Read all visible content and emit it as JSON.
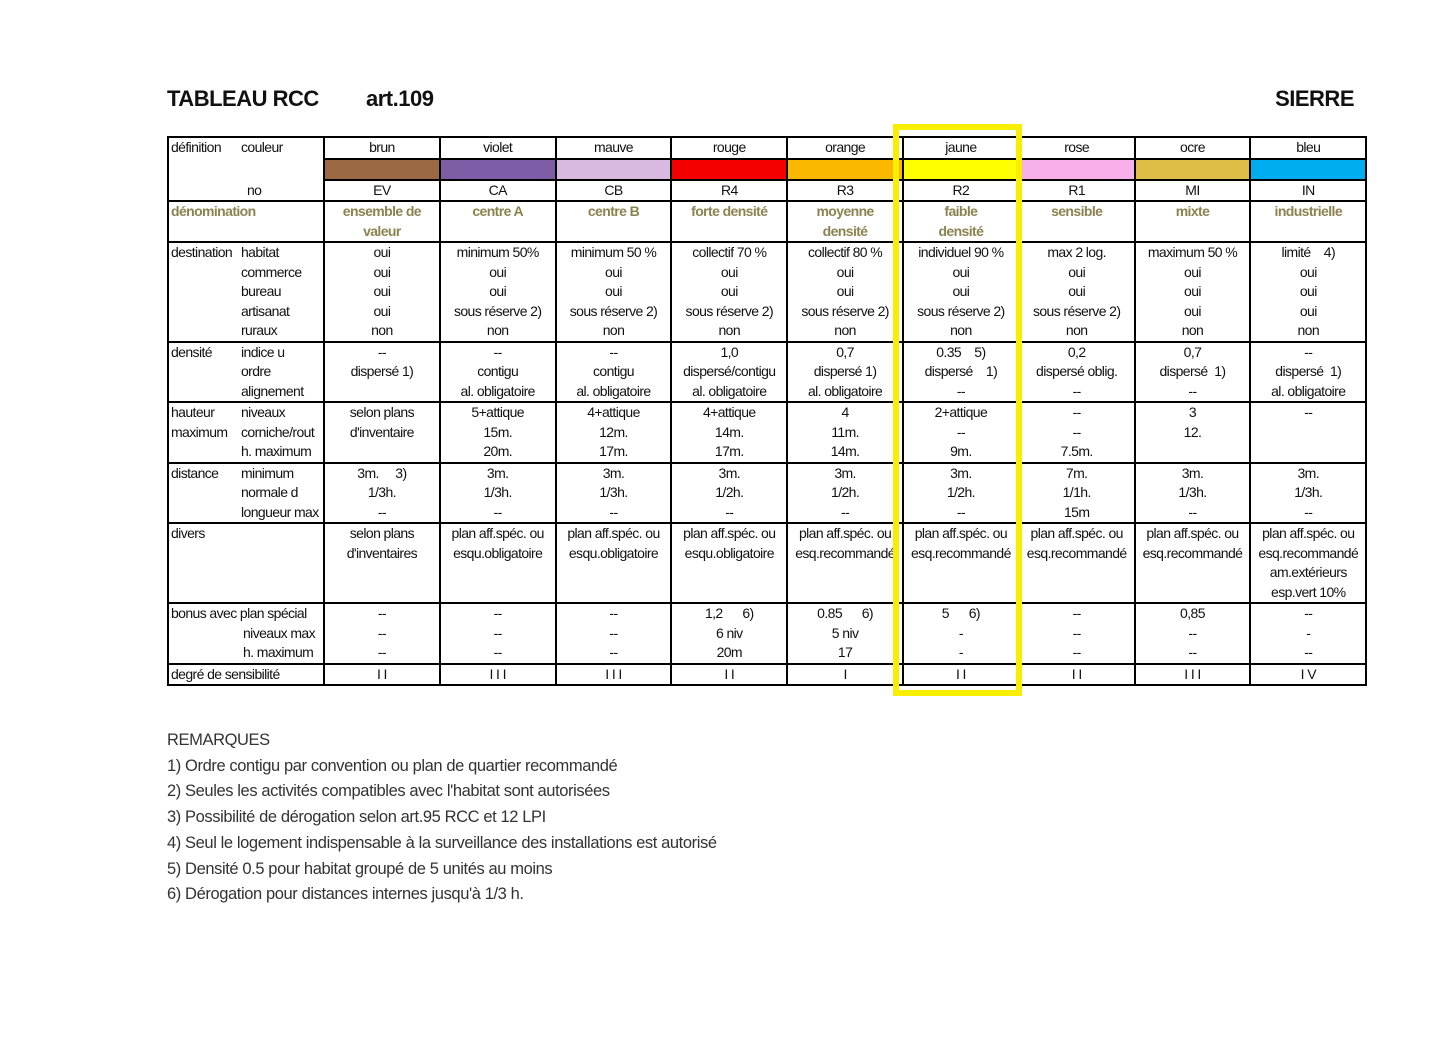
{
  "header": {
    "title": "TABLEAU RCC",
    "article": "art.109",
    "city": "SIERRE"
  },
  "row_labels": {
    "definition": "définition",
    "couleur": "couleur",
    "no": "no",
    "denomination": "dénomination",
    "destination": {
      "main": "destination",
      "subs": [
        "habitat",
        "commerce",
        "bureau",
        "artisanat",
        "ruraux"
      ]
    },
    "densite": {
      "main": "densité",
      "subs": [
        "indice u",
        "ordre",
        "alignement"
      ]
    },
    "hauteur": {
      "main": [
        "hauteur",
        "maximum"
      ],
      "subs": [
        "niveaux",
        "corniche/rout",
        "h. maximum"
      ]
    },
    "distance": {
      "main": "distance",
      "subs": [
        "minimum",
        "normale d",
        "longueur max"
      ]
    },
    "divers": "divers",
    "bonus": {
      "main": "bonus avec plan spécial",
      "subs": [
        "niveaux max",
        "h. maximum"
      ]
    },
    "sensibilite": "degré de sensibilité"
  },
  "columns": [
    {
      "couleur": "brun",
      "color": "#9b6a45",
      "no": "EV",
      "denomination": [
        "ensemble de",
        "valeur"
      ],
      "destination": [
        "oui",
        "oui",
        "oui",
        "oui",
        "non"
      ],
      "densite": [
        "--",
        "dispersé 1)",
        ""
      ],
      "hauteur": [
        "",
        "selon plans",
        "d'inventaire"
      ],
      "distance": [
        "3m.     3)",
        "1/3h.",
        "--"
      ],
      "divers": [
        "selon plans",
        "d'inventaires"
      ],
      "bonus": [
        "--",
        "--",
        "--"
      ],
      "sensibilite": "I I"
    },
    {
      "couleur": "violet",
      "color": "#7d5ea6",
      "no": "CA",
      "denomination": [
        "centre A"
      ],
      "destination": [
        "minimum 50%",
        "oui",
        "oui",
        "sous réserve 2)",
        "non"
      ],
      "densite": [
        "--",
        "contigu",
        "al. obligatoire"
      ],
      "hauteur": [
        "5+attique",
        "15m.",
        "20m."
      ],
      "distance": [
        "3m.",
        "1/3h.",
        "--"
      ],
      "divers": [
        "plan aff.spéc. ou",
        "esqu.obligatoire"
      ],
      "bonus": [
        "--",
        "--",
        "--"
      ],
      "sensibilite": "I I I"
    },
    {
      "couleur": "mauve",
      "color": "#d9b9e0",
      "no": "CB",
      "denomination": [
        "centre B"
      ],
      "destination": [
        "minimum 50 %",
        "oui",
        "oui",
        "sous réserve 2)",
        "non"
      ],
      "densite": [
        "--",
        "contigu",
        "al. obligatoire"
      ],
      "hauteur": [
        "4+attique",
        "12m.",
        "17m."
      ],
      "distance": [
        "3m.",
        "1/3h.",
        "--"
      ],
      "divers": [
        "plan aff.spéc. ou",
        "esqu.obligatoire"
      ],
      "bonus": [
        "--",
        "--",
        "--"
      ],
      "sensibilite": "I I I"
    },
    {
      "couleur": "rouge",
      "color": "#f40000",
      "no": "R4",
      "denomination": [
        "forte densité"
      ],
      "destination": [
        "collectif 70 %",
        "oui",
        "oui",
        "sous réserve 2)",
        "non"
      ],
      "densite": [
        "1,0",
        "dispersé/contigu",
        "al. obligatoire"
      ],
      "hauteur": [
        "4+attique",
        "14m.",
        "17m."
      ],
      "distance": [
        "3m.",
        "1/2h.",
        "--"
      ],
      "divers": [
        "plan aff.spéc. ou",
        "esqu.obligatoire"
      ],
      "bonus": [
        "1,2      6)",
        "6 niv",
        "20m"
      ],
      "sensibilite": "I I"
    },
    {
      "couleur": "orange",
      "color": "#fbb800",
      "no": "R3",
      "denomination": [
        "moyenne",
        "densité"
      ],
      "destination": [
        "collectif 80 %",
        "oui",
        "oui",
        "sous réserve 2)",
        "non"
      ],
      "densite": [
        "0,7",
        "dispersé 1)",
        "al. obligatoire"
      ],
      "hauteur": [
        "4",
        "11m.",
        "14m."
      ],
      "distance": [
        "3m.",
        "1/2h.",
        "--"
      ],
      "divers": [
        "plan aff.spéc. ou",
        "esq.recommandé"
      ],
      "bonus": [
        "0.85      6)",
        "5 niv",
        "17"
      ],
      "sensibilite": "I"
    },
    {
      "couleur": "jaune",
      "color": "#ffff00",
      "no": "R2",
      "denomination": [
        "faible",
        "densité"
      ],
      "destination": [
        "individuel 90 %",
        "oui",
        "oui",
        "sous réserve 2)",
        "non"
      ],
      "densite": [
        "0.35    5)",
        "dispersé    1)",
        "--"
      ],
      "hauteur": [
        "2+attique",
        "--",
        "9m."
      ],
      "distance": [
        "3m.",
        "1/2h.",
        "--"
      ],
      "divers": [
        "plan aff.spéc. ou",
        "esq.recommandé"
      ],
      "bonus": [
        "5      6)",
        "-",
        "-"
      ],
      "sensibilite": "I I"
    },
    {
      "couleur": "rose",
      "color": "#f7b0ea",
      "no": "R1",
      "denomination": [
        "sensible"
      ],
      "destination": [
        "max 2 log.",
        "oui",
        "oui",
        "sous réserve 2)",
        "non"
      ],
      "densite": [
        "0,2",
        "dispersé oblig.",
        "--"
      ],
      "hauteur": [
        "--",
        "--",
        "7.5m."
      ],
      "distance": [
        "7m.",
        "1/1h.",
        "15m"
      ],
      "divers": [
        "plan aff.spéc. ou",
        "esq.recommandé"
      ],
      "bonus": [
        "--",
        "--",
        "--"
      ],
      "sensibilite": "I I"
    },
    {
      "couleur": "ocre",
      "color": "#dfbe48",
      "no": "MI",
      "denomination": [
        "mixte"
      ],
      "destination": [
        "maximum 50 %",
        "oui",
        "oui",
        "oui",
        "non"
      ],
      "densite": [
        "0,7",
        "dispersé  1)",
        "--"
      ],
      "hauteur": [
        "3",
        "",
        "12."
      ],
      "distance": [
        "3m.",
        "1/3h.",
        "--"
      ],
      "divers": [
        "plan aff.spéc. ou",
        "esq.recommandé"
      ],
      "bonus": [
        "0,85",
        "--",
        "--"
      ],
      "sensibilite": "I I I"
    },
    {
      "couleur": "bleu",
      "color": "#00aeef",
      "no": "IN",
      "denomination": [
        "industrielle"
      ],
      "destination": [
        "limité    4)",
        "oui",
        "oui",
        "oui",
        "non"
      ],
      "densite": [
        "--",
        "dispersé  1)",
        "al. obligatoire"
      ],
      "hauteur": [
        "--",
        "",
        ""
      ],
      "distance": [
        "3m.",
        "1/3h.",
        "--"
      ],
      "divers": [
        "plan aff.spéc. ou",
        "esq.recommandé",
        "am.extérieurs",
        "esp.vert 10%"
      ],
      "bonus": [
        "--",
        "-",
        "--"
      ],
      "sensibilite": "I V"
    }
  ],
  "highlight": {
    "column": "jaune",
    "color": "#f7ee00"
  },
  "remarks": {
    "title": "REMARQUES",
    "items": [
      "1) Ordre contigu par convention ou plan de quartier recommandé",
      "2) Seules les activités compatibles avec l'habitat sont autorisées",
      "3) Possibilité de dérogation selon art.95 RCC et 12 LPI",
      "4) Seul le logement indispensable à la surveillance des installations est autorisé",
      "5) Densité 0.5 pour habitat groupé de 5 unités au moins",
      "6) Dérogation pour distances internes jusqu'à 1/3 h."
    ]
  }
}
